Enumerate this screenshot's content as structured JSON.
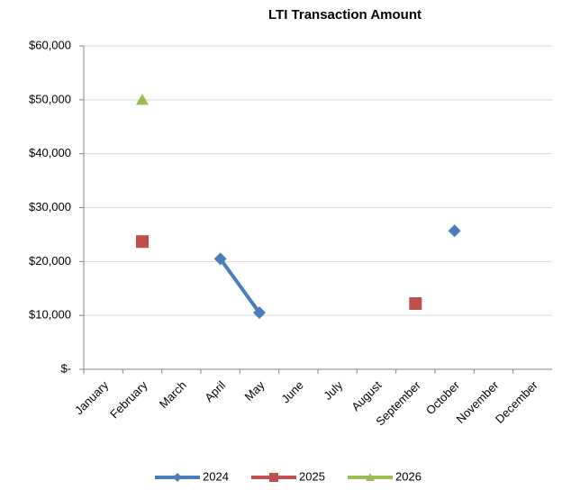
{
  "chart_data": {
    "type": "line",
    "title": "LTI Transaction Amount",
    "categories": [
      "January",
      "February",
      "March",
      "April",
      "May",
      "June",
      "July",
      "August",
      "September",
      "October",
      "November",
      "December"
    ],
    "series": [
      {
        "name": "2024",
        "color": "#4a7ebb",
        "marker": "diamond",
        "values": [
          null,
          null,
          null,
          20500,
          10500,
          null,
          null,
          null,
          null,
          25700,
          null,
          null
        ]
      },
      {
        "name": "2025",
        "color": "#c0504d",
        "marker": "square",
        "values": [
          null,
          23700,
          null,
          null,
          null,
          null,
          null,
          null,
          12200,
          null,
          null,
          null
        ]
      },
      {
        "name": "2026",
        "color": "#9bbb59",
        "marker": "triangle",
        "values": [
          null,
          50000,
          null,
          null,
          null,
          null,
          null,
          null,
          null,
          null,
          null,
          null
        ]
      }
    ],
    "ylim": [
      0,
      60000
    ],
    "yticks": [
      {
        "value": 0,
        "label": "$-"
      },
      {
        "value": 10000,
        "label": "$10,000"
      },
      {
        "value": 20000,
        "label": "$20,000"
      },
      {
        "value": 30000,
        "label": "$30,000"
      },
      {
        "value": 40000,
        "label": "$40,000"
      },
      {
        "value": 50000,
        "label": "$50,000"
      },
      {
        "value": 60000,
        "label": "$60,000"
      }
    ],
    "grid": true,
    "legend": "bottom"
  }
}
